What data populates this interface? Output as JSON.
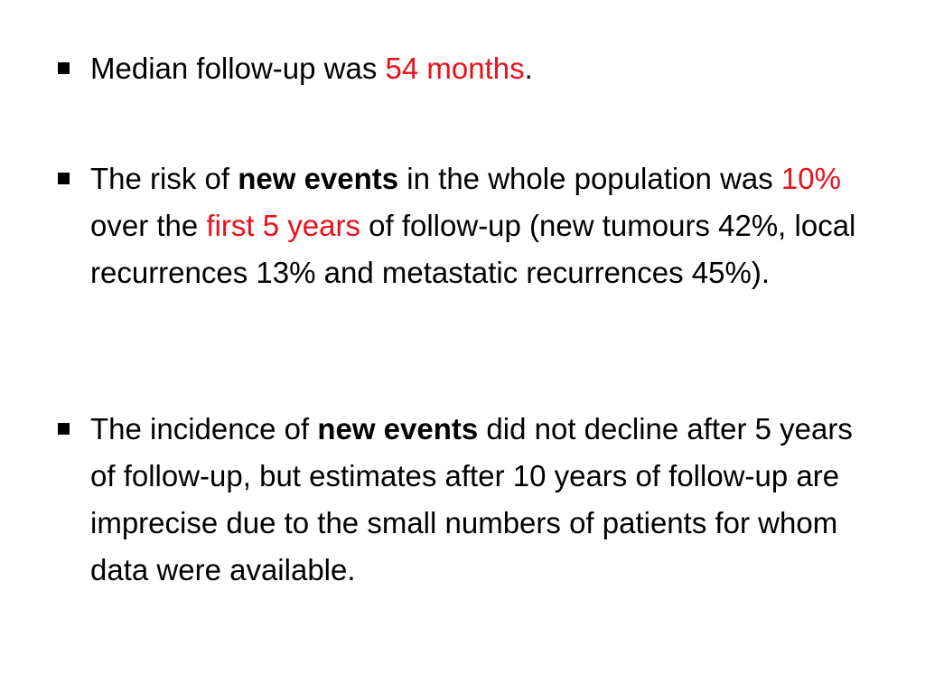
{
  "bullets": [
    {
      "segments": [
        {
          "text": "Median follow-up was ",
          "style": "normal"
        },
        {
          "text": "54 months",
          "style": "red"
        },
        {
          "text": ".",
          "style": "normal"
        }
      ]
    },
    {
      "segments": [
        {
          "text": " The risk of ",
          "style": "normal"
        },
        {
          "text": "new events",
          "style": "bold"
        },
        {
          "text": " in the whole population was ",
          "style": "normal"
        },
        {
          "text": "10%",
          "style": "red"
        },
        {
          "text": " over the ",
          "style": "normal"
        },
        {
          "text": "first 5 years",
          "style": "red"
        },
        {
          "text": " of follow-up (new tumours 42%, local recurrences 13% and metastatic recurrences 45%).",
          "style": "normal"
        }
      ]
    },
    {
      "segments": [
        {
          "text": " The incidence of ",
          "style": "normal"
        },
        {
          "text": "new events",
          "style": "bold"
        },
        {
          "text": " did not decline after 5 years of follow-up, but estimates after 10 years of follow-up are imprecise due to the small numbers of patients for whom data were available.",
          "style": "normal"
        }
      ]
    }
  ],
  "colors": {
    "text": "#000000",
    "highlight": "#e8111b",
    "background": "#ffffff"
  },
  "icons": {
    "bullet": "square-bullet-icon"
  }
}
